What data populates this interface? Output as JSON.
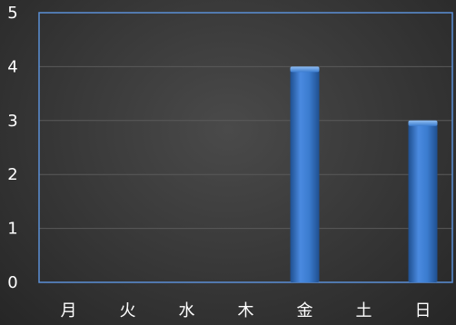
{
  "chart_data": {
    "type": "bar",
    "categories": [
      "月",
      "火",
      "水",
      "木",
      "金",
      "土",
      "日"
    ],
    "values": [
      0,
      0,
      0,
      0,
      4,
      0,
      3
    ],
    "title": "",
    "xlabel": "",
    "ylabel": "",
    "ylim": [
      0,
      5
    ],
    "yticks": [
      "0",
      "1",
      "2",
      "3",
      "4",
      "5"
    ],
    "grid": true,
    "legend": "none",
    "colors": {
      "bar_top": "#6aa3e6",
      "bar_mid": "#3b7ccf",
      "bar_bottom": "#1f4f8f",
      "axis": "#5b8fd6",
      "grid": "#5a5a5a",
      "text": "#ffffff"
    }
  }
}
